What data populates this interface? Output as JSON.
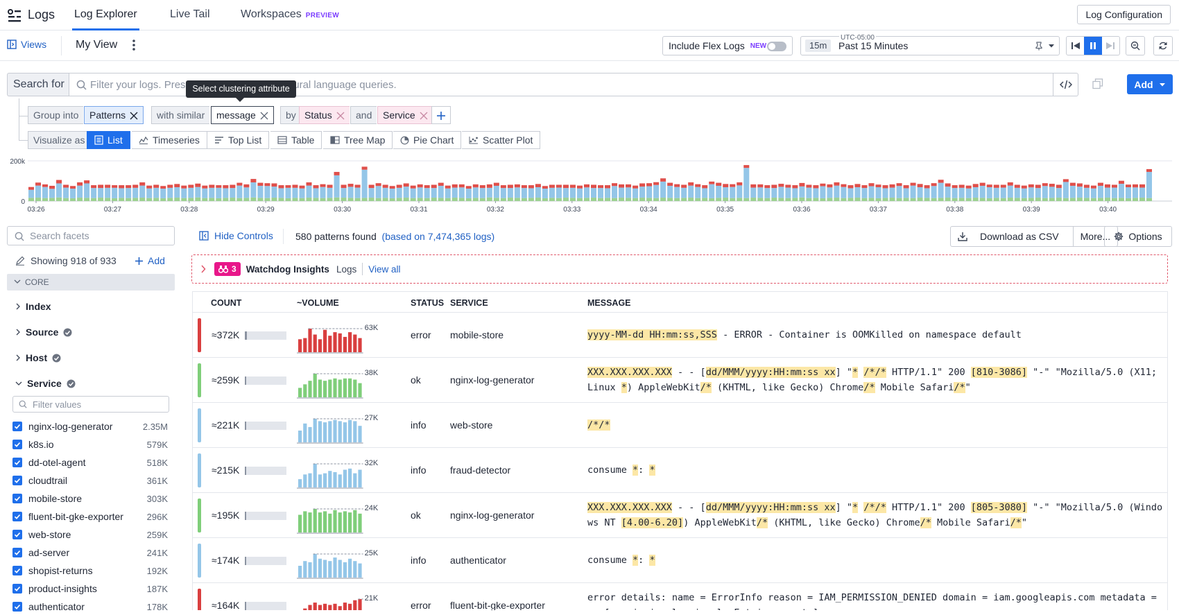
{
  "app": {
    "product": "Logs",
    "tabs": [
      {
        "label": "Log Explorer",
        "active": true
      },
      {
        "label": "Live Tail",
        "active": false
      },
      {
        "label": "Workspaces",
        "badge": "PREVIEW",
        "active": false
      }
    ],
    "config_button": "Log Configuration"
  },
  "viewbar": {
    "views_label": "Views",
    "view_name": "My View",
    "flex_label": "Include Flex Logs",
    "flex_badge": "NEW",
    "flex_enabled": false,
    "timezone": "UTC-05:00",
    "time_chip": "15m",
    "time_label": "Past 15 Minutes"
  },
  "search": {
    "prefix": "Search for",
    "placeholder": "Filter your logs. Press ⌥Tab to try using natural language queries.",
    "add_label": "Add",
    "tooltip": "Select clustering attribute"
  },
  "grouping": {
    "group_into_label": "Group into",
    "group_into_value": "Patterns",
    "similar_label": "with similar",
    "similar_value": "message",
    "by_label": "by",
    "by_values": [
      "Status",
      "Service"
    ],
    "and_label": "and"
  },
  "visualize": {
    "label": "Visualize as",
    "options": [
      "List",
      "Timeseries",
      "Top List",
      "Table",
      "Tree Map",
      "Pie Chart",
      "Scatter Plot"
    ],
    "active": "List"
  },
  "chart_data": {
    "type": "bar",
    "stacked": true,
    "y_ticks": [
      "200k",
      "0"
    ],
    "ylim": [
      0,
      200000
    ],
    "x_ticks": [
      "03:26",
      "03:27",
      "03:28",
      "03:29",
      "03:30",
      "03:31",
      "03:32",
      "03:33",
      "03:34",
      "03:35",
      "03:36",
      "03:37",
      "03:38",
      "03:39",
      "03:40"
    ],
    "series": [
      {
        "color": "#9dd191",
        "values": [
          16000,
          17000,
          15000,
          16000,
          18000,
          15000,
          14000,
          17000,
          16000,
          15000,
          17000,
          16000,
          14000,
          16000,
          15000,
          16000,
          17000,
          15000,
          16000,
          14000,
          16000,
          17000,
          15000,
          16000,
          18000,
          15000,
          16000,
          14000,
          16000,
          17000,
          15000,
          16000,
          18000,
          16000,
          15000,
          17000,
          16000,
          14000,
          16000,
          15000,
          17000,
          16000,
          15000,
          16000,
          18000,
          17000,
          16000,
          15000,
          16000,
          17000,
          15000,
          16000,
          14000,
          16000,
          17000,
          15000,
          16000,
          15000,
          17000,
          16000,
          15000,
          17000,
          16000,
          14000,
          16000,
          15000,
          18000,
          16000,
          15000,
          17000,
          16000,
          15000,
          16000,
          17000,
          14000,
          16000,
          15000,
          17000,
          16000,
          15000,
          16000,
          17000,
          15000,
          16000,
          15000,
          17000,
          16000,
          15000,
          17000,
          16000,
          15000,
          17000,
          16000,
          15000,
          16000,
          17000,
          15000,
          16000,
          14000,
          16000,
          17000,
          15000,
          16000,
          15000,
          17000,
          16000,
          15000,
          17000,
          16000,
          15000,
          16000,
          18000,
          15000,
          16000,
          14000,
          16000,
          17000,
          15000,
          16000,
          17000,
          15000,
          16000,
          14000,
          16000,
          17000,
          15000,
          16000,
          15000,
          17000,
          16000,
          15000,
          16000,
          17000,
          15000,
          16000,
          15000,
          17000,
          16000,
          14000,
          16000,
          15000,
          17000,
          16000,
          15000,
          16000,
          17000,
          15000,
          16000,
          17000,
          15000,
          16000,
          17000,
          16000,
          15000,
          16000,
          17000,
          15000,
          16000,
          14000,
          16000,
          17000,
          15000
        ]
      },
      {
        "color": "#94c6e8",
        "values": [
          40000,
          60000,
          55000,
          45000,
          70000,
          52000,
          48000,
          60000,
          72000,
          50000,
          48000,
          50000,
          52000,
          48000,
          50000,
          50000,
          60000,
          48000,
          50000,
          48000,
          50000,
          52000,
          48000,
          50000,
          52000,
          48000,
          50000,
          52000,
          48000,
          48000,
          62000,
          52000,
          75000,
          60000,
          60000,
          55000,
          48000,
          52000,
          50000,
          48000,
          60000,
          48000,
          55000,
          50000,
          110000,
          48000,
          55000,
          52000,
          140000,
          48000,
          60000,
          50000,
          48000,
          50000,
          55000,
          48000,
          52000,
          50000,
          48000,
          60000,
          48000,
          50000,
          52000,
          48000,
          52000,
          50000,
          48000,
          60000,
          50000,
          48000,
          52000,
          50000,
          48000,
          52000,
          48000,
          50000,
          52000,
          48000,
          50000,
          48000,
          52000,
          48000,
          50000,
          48000,
          60000,
          50000,
          52000,
          48000,
          55000,
          58000,
          65000,
          80000,
          60000,
          55000,
          50000,
          60000,
          55000,
          48000,
          70000,
          60000,
          52000,
          55000,
          62000,
          150000,
          50000,
          52000,
          50000,
          48000,
          55000,
          52000,
          48000,
          55000,
          52000,
          48000,
          60000,
          52000,
          60000,
          55000,
          48000,
          52000,
          50000,
          58000,
          55000,
          48000,
          50000,
          60000,
          48000,
          62000,
          52000,
          48000,
          60000,
          75000,
          55000,
          50000,
          50000,
          48000,
          52000,
          60000,
          55000,
          50000,
          52000,
          60000,
          50000,
          48000,
          52000,
          48000,
          60000,
          55000,
          48000,
          80000,
          60000,
          55000,
          50000,
          48000,
          60000,
          50000,
          52000,
          70000,
          55000,
          52000,
          50000,
          130000
        ]
      },
      {
        "color": "#e04f4a",
        "values": [
          14000,
          15000,
          13000,
          15000,
          17000,
          14000,
          13000,
          16000,
          15000,
          14000,
          16000,
          15000,
          13000,
          15000,
          14000,
          15000,
          16000,
          14000,
          15000,
          13000,
          15000,
          16000,
          14000,
          15000,
          17000,
          14000,
          15000,
          13000,
          15000,
          16000,
          14000,
          15000,
          17000,
          15000,
          14000,
          16000,
          15000,
          13000,
          15000,
          14000,
          16000,
          15000,
          14000,
          15000,
          17000,
          16000,
          15000,
          14000,
          15000,
          16000,
          14000,
          15000,
          13000,
          15000,
          16000,
          14000,
          15000,
          14000,
          16000,
          15000,
          14000,
          16000,
          15000,
          13000,
          15000,
          14000,
          17000,
          15000,
          14000,
          16000,
          15000,
          14000,
          15000,
          16000,
          13000,
          15000,
          14000,
          16000,
          15000,
          14000,
          15000,
          16000,
          14000,
          15000,
          14000,
          16000,
          15000,
          14000,
          16000,
          15000,
          14000,
          16000,
          15000,
          14000,
          15000,
          16000,
          14000,
          15000,
          13000,
          15000,
          16000,
          14000,
          15000,
          14000,
          16000,
          15000,
          14000,
          16000,
          15000,
          14000,
          15000,
          17000,
          14000,
          15000,
          13000,
          15000,
          16000,
          14000,
          15000,
          16000,
          14000,
          15000,
          13000,
          15000,
          16000,
          14000,
          15000,
          14000,
          16000,
          15000,
          14000,
          15000,
          16000,
          14000,
          15000,
          14000,
          16000,
          15000,
          13000,
          15000,
          14000,
          16000,
          15000,
          14000,
          15000,
          16000,
          14000,
          15000,
          16000,
          14000,
          15000,
          16000,
          15000,
          14000,
          15000,
          16000,
          14000,
          15000,
          13000,
          15000,
          16000,
          14000
        ]
      }
    ]
  },
  "facets": {
    "search_placeholder": "Search facets",
    "showing": "Showing 918 of 933",
    "add_label": "Add",
    "section": "CORE",
    "groups": [
      "Index",
      "Source",
      "Host",
      "Service"
    ],
    "filter_placeholder": "Filter values",
    "service_values": [
      {
        "name": "nginx-log-generator",
        "count": "2.35M"
      },
      {
        "name": "k8s.io",
        "count": "579K"
      },
      {
        "name": "dd-otel-agent",
        "count": "518K"
      },
      {
        "name": "cloudtrail",
        "count": "361K"
      },
      {
        "name": "mobile-store",
        "count": "303K"
      },
      {
        "name": "fluent-bit-gke-exporter",
        "count": "296K"
      },
      {
        "name": "web-store",
        "count": "259K"
      },
      {
        "name": "ad-server",
        "count": "241K"
      },
      {
        "name": "shopist-returns",
        "count": "192K"
      },
      {
        "name": "product-insights",
        "count": "187K"
      },
      {
        "name": "authenticator",
        "count": "178K"
      }
    ]
  },
  "controls": {
    "hide_label": "Hide Controls",
    "patterns_found": "580 patterns found",
    "based_on": "(based on 7,474,365 logs)",
    "csv_label": "Download as CSV",
    "more_label": "More...",
    "options_label": "Options"
  },
  "watchdog": {
    "count": "3",
    "title": "Watchdog Insights",
    "scope": "Logs",
    "view_all": "View all"
  },
  "table": {
    "headers": [
      "COUNT",
      "~VOLUME",
      "STATUS",
      "SERVICE",
      "MESSAGE"
    ],
    "rows": [
      {
        "count": "≈372K",
        "share": 0.05,
        "peak": "63K",
        "status": "error",
        "status_color": "#d93f3f",
        "service": "mobile-store",
        "spark": [
          0.55,
          0.6,
          1.0,
          0.75,
          0.55,
          0.95,
          0.7,
          0.85,
          0.8,
          0.65,
          0.85,
          0.75,
          0.6
        ],
        "msg_parts": [
          {
            "t": "yyyy-MM-dd HH:mm:ss,SSS",
            "h": true
          },
          {
            "t": " - ERROR - Container is OOMKilled on namespace default",
            "h": false
          }
        ]
      },
      {
        "count": "≈259K",
        "share": 0.035,
        "peak": "38K",
        "status": "ok",
        "status_color": "#7fce7a",
        "service": "nginx-log-generator",
        "spark": [
          0.4,
          0.55,
          0.7,
          1.0,
          0.75,
          0.7,
          0.75,
          0.8,
          0.75,
          0.8,
          0.8,
          0.75,
          0.6
        ],
        "msg_parts": [
          {
            "t": "XXX.XXX.XXX.XXX",
            "h": true
          },
          {
            "t": " - - [",
            "h": false
          },
          {
            "t": "dd/MMM/yyyy:HH:mm:ss xx",
            "h": true
          },
          {
            "t": "] \"",
            "h": false
          },
          {
            "t": "*",
            "h": true
          },
          {
            "t": " ",
            "h": false
          },
          {
            "t": "/*/*",
            "h": true
          },
          {
            "t": " HTTP/1.1\" 200 ",
            "h": false
          },
          {
            "t": "[810-3086]",
            "h": true
          },
          {
            "t": " \"-\" \"Mozilla/5.0 (X11; Linux ",
            "h": false
          },
          {
            "t": "*",
            "h": true
          },
          {
            "t": ") AppleWebKit",
            "h": false
          },
          {
            "t": "/*",
            "h": true
          },
          {
            "t": " (KHTML, like Gecko) Chrome",
            "h": false
          },
          {
            "t": "/*",
            "h": true
          },
          {
            "t": " Mobile Safari",
            "h": false
          },
          {
            "t": "/*",
            "h": true
          },
          {
            "t": "\"",
            "h": false
          }
        ]
      },
      {
        "count": "≈221K",
        "share": 0.03,
        "peak": "27K",
        "status": "info",
        "status_color": "#94c6e8",
        "service": "web-store",
        "spark": [
          0.5,
          0.8,
          0.65,
          1.0,
          0.9,
          0.85,
          0.9,
          0.95,
          0.9,
          0.85,
          0.95,
          0.9,
          0.7
        ],
        "msg_parts": [
          {
            "t": "/*/*",
            "h": true
          }
        ]
      },
      {
        "count": "≈215K",
        "share": 0.03,
        "peak": "32K",
        "status": "info",
        "status_color": "#94c6e8",
        "service": "fraud-detector",
        "spark": [
          0.35,
          0.55,
          0.6,
          1.0,
          0.55,
          0.6,
          0.7,
          0.65,
          0.55,
          0.75,
          0.8,
          0.6,
          0.75
        ],
        "msg_parts": [
          {
            "t": "consume ",
            "h": false
          },
          {
            "t": "*",
            "h": true
          },
          {
            "t": ": ",
            "h": false
          },
          {
            "t": "*",
            "h": true
          }
        ]
      },
      {
        "count": "≈195K",
        "share": 0.027,
        "peak": "24K",
        "status": "ok",
        "status_color": "#7fce7a",
        "service": "nginx-log-generator",
        "spark": [
          0.75,
          0.9,
          0.85,
          1.0,
          0.85,
          0.9,
          0.8,
          0.95,
          0.85,
          0.9,
          0.85,
          0.95,
          0.8
        ],
        "msg_parts": [
          {
            "t": "XXX.XXX.XXX.XXX",
            "h": true
          },
          {
            "t": " - - [",
            "h": false
          },
          {
            "t": "dd/MMM/yyyy:HH:mm:ss xx",
            "h": true
          },
          {
            "t": "] \"",
            "h": false
          },
          {
            "t": "*",
            "h": true
          },
          {
            "t": " ",
            "h": false
          },
          {
            "t": "/*/*",
            "h": true
          },
          {
            "t": " HTTP/1.1\" 200 ",
            "h": false
          },
          {
            "t": "[805-3080]",
            "h": true
          },
          {
            "t": " \"-\" \"Mozilla/5.0 (Windows NT ",
            "h": false
          },
          {
            "t": "[4.00-6.20]",
            "h": true
          },
          {
            "t": ") AppleWebKit",
            "h": false
          },
          {
            "t": "/*",
            "h": true
          },
          {
            "t": " (KHTML, like Gecko) Chrome",
            "h": false
          },
          {
            "t": "/*",
            "h": true
          },
          {
            "t": " Mobile Safari",
            "h": false
          },
          {
            "t": "/*",
            "h": true
          },
          {
            "t": "\"",
            "h": false
          }
        ]
      },
      {
        "count": "≈174K",
        "share": 0.024,
        "peak": "25K",
        "status": "info",
        "status_color": "#94c6e8",
        "service": "authenticator",
        "spark": [
          0.5,
          0.7,
          0.65,
          1.0,
          0.8,
          0.75,
          0.7,
          0.85,
          0.75,
          0.65,
          0.8,
          0.7,
          0.6
        ],
        "msg_parts": [
          {
            "t": "consume ",
            "h": false
          },
          {
            "t": "*",
            "h": true
          },
          {
            "t": ": ",
            "h": false
          },
          {
            "t": "*",
            "h": true
          }
        ]
      },
      {
        "count": "≈164K",
        "share": 0.022,
        "peak": "21K",
        "status": "error",
        "status_color": "#d93f3f",
        "service": "fluent-bit-gke-exporter",
        "spark": [
          0.5,
          0.6,
          0.75,
          0.85,
          0.75,
          0.8,
          0.75,
          0.8,
          0.7,
          0.85,
          0.8,
          0.95,
          1.0
        ],
        "msg_parts": [
          {
            "t": "error details: name = ErrorInfo reason = IAM_PERMISSION_DENIED domain = iam.googleapis.com metadata = map[permission:logging.logEntries.create]",
            "h": false
          }
        ]
      }
    ]
  }
}
